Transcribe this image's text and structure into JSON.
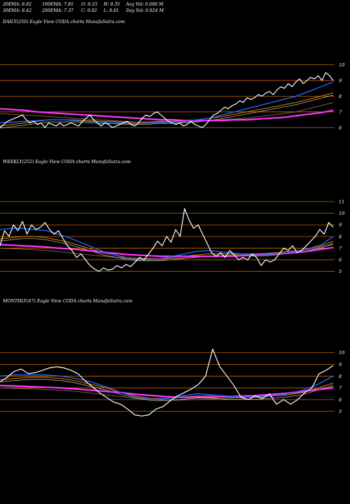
{
  "header": {
    "ema20": "20EMA: 8.92",
    "ema100": "100EMA: 7.85",
    "open": "O: 9.33",
    "high": "H: 9.35",
    "avgvol": "Avg Vol: 0.696  M",
    "ema30": "30EMA: 8.42",
    "ema200": "200EMA: 7.37",
    "close": "C: 9.02",
    "low": "L: 8.81",
    "dayvol": "Day Vol: 0.024  M"
  },
  "chart_data": [
    {
      "type": "line",
      "title": "DAILY(250) Eagle  View  CODA charts MunafaSutra.com",
      "y_ticks": [
        10,
        9,
        8,
        7,
        6
      ],
      "ylim": [
        5.3,
        10.2
      ],
      "colors": {
        "price": "#ffffff",
        "ema_fast": "#1e64ff",
        "ema_100": "#e08000",
        "ema_200": "#ff33ff",
        "ma_mid": "#c8c8a0",
        "ma_slow": "#8a6a40",
        "gridline": "#c86400"
      },
      "series": [
        {
          "name": "",
          "values": [
            6.0,
            6.2,
            6.4,
            6.5,
            6.6,
            6.7,
            6.8,
            6.5,
            6.3,
            6.4,
            6.2,
            6.3,
            6.0,
            6.3,
            6.2,
            6.1,
            6.3,
            6.1,
            6.2,
            6.3,
            6.2,
            6.1,
            6.4,
            6.6,
            6.8,
            6.5,
            6.3,
            6.1,
            6.3,
            6.2,
            6.0,
            6.1,
            6.2,
            6.3,
            6.4,
            6.2,
            6.1,
            6.3,
            6.6,
            6.8,
            6.7,
            6.9,
            7.0,
            6.8,
            6.6,
            6.4,
            6.3,
            6.2,
            6.3,
            6.1,
            6.2,
            6.4,
            6.2,
            6.1,
            6.0,
            6.2,
            6.5,
            6.8,
            6.9,
            7.1,
            7.3,
            7.2,
            7.4,
            7.5,
            7.7,
            7.6,
            7.9,
            7.8,
            7.9,
            8.1,
            8.0,
            8.2,
            8.3,
            8.1,
            8.4,
            8.6,
            8.5,
            8.8,
            8.6,
            8.9,
            9.1,
            8.8,
            9.0,
            9.2,
            9.1,
            9.3,
            9.0,
            9.5,
            9.3,
            9.0
          ]
        },
        {
          "name": "",
          "values": [
            6.3,
            6.35,
            6.4,
            6.45,
            6.5,
            6.5,
            6.45,
            6.4,
            6.35,
            6.3,
            6.3,
            6.25,
            6.3,
            6.3,
            6.35,
            6.4,
            6.5,
            6.6,
            6.8,
            7.0,
            7.2,
            7.4,
            7.6,
            7.8,
            8.0,
            8.3,
            8.6,
            8.9
          ]
        },
        {
          "name": "",
          "values": [
            6.1,
            6.2,
            6.3,
            6.4,
            6.5,
            6.5,
            6.5,
            6.45,
            6.4,
            6.4,
            6.35,
            6.35,
            6.35,
            6.4,
            6.4,
            6.45,
            6.5,
            6.6,
            6.7,
            6.85,
            7.0,
            7.15,
            7.3,
            7.45,
            7.6,
            7.8,
            8.0,
            8.2
          ]
        },
        {
          "name": "",
          "values": [
            6.9,
            6.85,
            6.8,
            6.75,
            6.7,
            6.65,
            6.6,
            6.55,
            6.5,
            6.45,
            6.4,
            6.35,
            6.35,
            6.35,
            6.35,
            6.35,
            6.4,
            6.45,
            6.5,
            6.55,
            6.6,
            6.7,
            6.8,
            6.9,
            7.0,
            7.2,
            7.4,
            7.6
          ]
        },
        {
          "name": "",
          "values": [
            7.2,
            7.15,
            7.1,
            7.0,
            6.95,
            6.9,
            6.85,
            6.8,
            6.75,
            6.7,
            6.65,
            6.6,
            6.55,
            6.5,
            6.5,
            6.45,
            6.45,
            6.45,
            6.45,
            6.5,
            6.5,
            6.55,
            6.6,
            6.65,
            6.75,
            6.85,
            6.95,
            7.1
          ]
        }
      ]
    },
    {
      "type": "line",
      "title": "WEEKLY(252) Eagle  View  CODA charts MunafaSutra.com",
      "y_ticks": [
        11,
        10,
        9,
        8,
        7,
        6,
        5
      ],
      "ylim": [
        4.5,
        11.3
      ],
      "colors": {
        "price": "#ffffff",
        "ema_fast": "#1e64ff",
        "ema_100": "#e08000",
        "ema_200": "#ff33ff",
        "ma_mid": "#c8c8a0",
        "ma_slow": "#8a6a40",
        "gridline": "#c86400"
      },
      "series": [
        {
          "name": "",
          "values": [
            7.2,
            8.5,
            8.0,
            9.0,
            8.5,
            9.3,
            8.2,
            9.0,
            8.6,
            8.8,
            9.2,
            8.6,
            8.2,
            8.5,
            7.8,
            7.2,
            6.8,
            6.2,
            6.5,
            6.0,
            5.5,
            5.2,
            5.0,
            5.3,
            5.1,
            5.2,
            5.5,
            5.3,
            5.6,
            5.4,
            5.8,
            6.2,
            6.0,
            6.5,
            7.0,
            7.6,
            7.2,
            8.0,
            7.5,
            8.6,
            8.0,
            10.4,
            9.4,
            8.7,
            9.0,
            8.2,
            7.4,
            6.6,
            6.3,
            6.6,
            6.2,
            6.8,
            6.4,
            6.0,
            6.2,
            6.0,
            6.5,
            6.2,
            5.5,
            6.0,
            5.8,
            6.0,
            6.5,
            7.0,
            6.8,
            7.2,
            6.6,
            6.8,
            7.2,
            7.6,
            8.0,
            8.6,
            8.2,
            9.2,
            8.8
          ]
        },
        {
          "name": "",
          "values": [
            8.6,
            8.7,
            8.7,
            8.6,
            8.5,
            8.2,
            7.9,
            7.5,
            7.1,
            6.7,
            6.4,
            6.1,
            6.0,
            6.0,
            6.1,
            6.3,
            6.5,
            6.7,
            6.8,
            6.7,
            6.6,
            6.5,
            6.4,
            6.4,
            6.5,
            6.6,
            6.8,
            7.0,
            7.3,
            8.0
          ]
        },
        {
          "name": "",
          "values": [
            7.8,
            7.9,
            8.0,
            8.0,
            7.9,
            7.7,
            7.5,
            7.2,
            6.9,
            6.6,
            6.4,
            6.2,
            6.1,
            6.1,
            6.1,
            6.2,
            6.3,
            6.4,
            6.5,
            6.5,
            6.5,
            6.5,
            6.5,
            6.5,
            6.6,
            6.7,
            6.8,
            7.0,
            7.2,
            7.6
          ]
        },
        {
          "name": "",
          "values": [
            7.0,
            6.95,
            6.9,
            6.85,
            6.8,
            6.7,
            6.6,
            6.5,
            6.4,
            6.3,
            6.2,
            6.1,
            6.05,
            6.05,
            6.05,
            6.1,
            6.15,
            6.2,
            6.3,
            6.35,
            6.4,
            6.45,
            6.5,
            6.55,
            6.6,
            6.7,
            6.8,
            6.9,
            7.1,
            7.3
          ]
        },
        {
          "name": "",
          "values": [
            7.3,
            7.25,
            7.2,
            7.15,
            7.1,
            7.0,
            6.95,
            6.85,
            6.75,
            6.65,
            6.55,
            6.45,
            6.4,
            6.35,
            6.3,
            6.3,
            6.3,
            6.3,
            6.3,
            6.3,
            6.3,
            6.35,
            6.4,
            6.45,
            6.5,
            6.55,
            6.65,
            6.75,
            6.9,
            7.05
          ]
        }
      ]
    },
    {
      "type": "line",
      "title": "MONTHLY(47) Eagle  View  CODA charts MunafaSutra.com",
      "y_ticks": [
        10,
        9,
        8,
        7,
        6,
        5
      ],
      "ylim": [
        4.5,
        10.7
      ],
      "colors": {
        "price": "#ffffff",
        "ema_fast": "#1e64ff",
        "ema_100": "#e08000",
        "ema_200": "#ff33ff",
        "ma_mid": "#c8c8a0",
        "ma_slow": "#8a6a40",
        "gridline": "#c86400"
      },
      "series": [
        {
          "name": "",
          "values": [
            7.5,
            7.9,
            8.4,
            8.6,
            8.2,
            8.3,
            8.5,
            8.7,
            8.8,
            8.7,
            8.5,
            8.2,
            7.6,
            7.1,
            6.6,
            6.2,
            5.8,
            5.6,
            5.2,
            4.7,
            4.6,
            4.7,
            5.2,
            5.4,
            5.9,
            6.3,
            6.6,
            6.9,
            7.3,
            8.0,
            10.3,
            8.8,
            8.0,
            7.2,
            6.2,
            6.0,
            6.3,
            6.1,
            6.5,
            5.6,
            6.0,
            5.6,
            6.0,
            6.6,
            7.0,
            8.2,
            8.5,
            8.9
          ]
        },
        {
          "name": "",
          "values": [
            8.0,
            8.1,
            8.1,
            8.1,
            8.0,
            7.8,
            7.5,
            7.1,
            6.6,
            6.2,
            6.0,
            6.1,
            6.3,
            6.5,
            6.4,
            6.3,
            6.2,
            6.2,
            6.3,
            6.5,
            6.8,
            7.3,
            8.0
          ]
        },
        {
          "name": "",
          "values": [
            7.7,
            7.8,
            7.9,
            7.9,
            7.8,
            7.6,
            7.3,
            7.0,
            6.6,
            6.3,
            6.1,
            6.1,
            6.2,
            6.3,
            6.3,
            6.2,
            6.2,
            6.2,
            6.3,
            6.4,
            6.6,
            7.0,
            7.4
          ]
        },
        {
          "name": "",
          "values": [
            7.0,
            6.95,
            6.9,
            6.85,
            6.8,
            6.7,
            6.55,
            6.4,
            6.25,
            6.1,
            6.0,
            5.95,
            5.95,
            6.0,
            6.05,
            6.1,
            6.15,
            6.25,
            6.35,
            6.5,
            6.65,
            6.85,
            7.1
          ]
        },
        {
          "name": "",
          "values": [
            7.2,
            7.15,
            7.1,
            7.05,
            7.0,
            6.9,
            6.8,
            6.7,
            6.6,
            6.45,
            6.35,
            6.25,
            6.2,
            6.2,
            6.2,
            6.25,
            6.3,
            6.35,
            6.45,
            6.55,
            6.7,
            6.85,
            7.0
          ]
        }
      ]
    }
  ]
}
